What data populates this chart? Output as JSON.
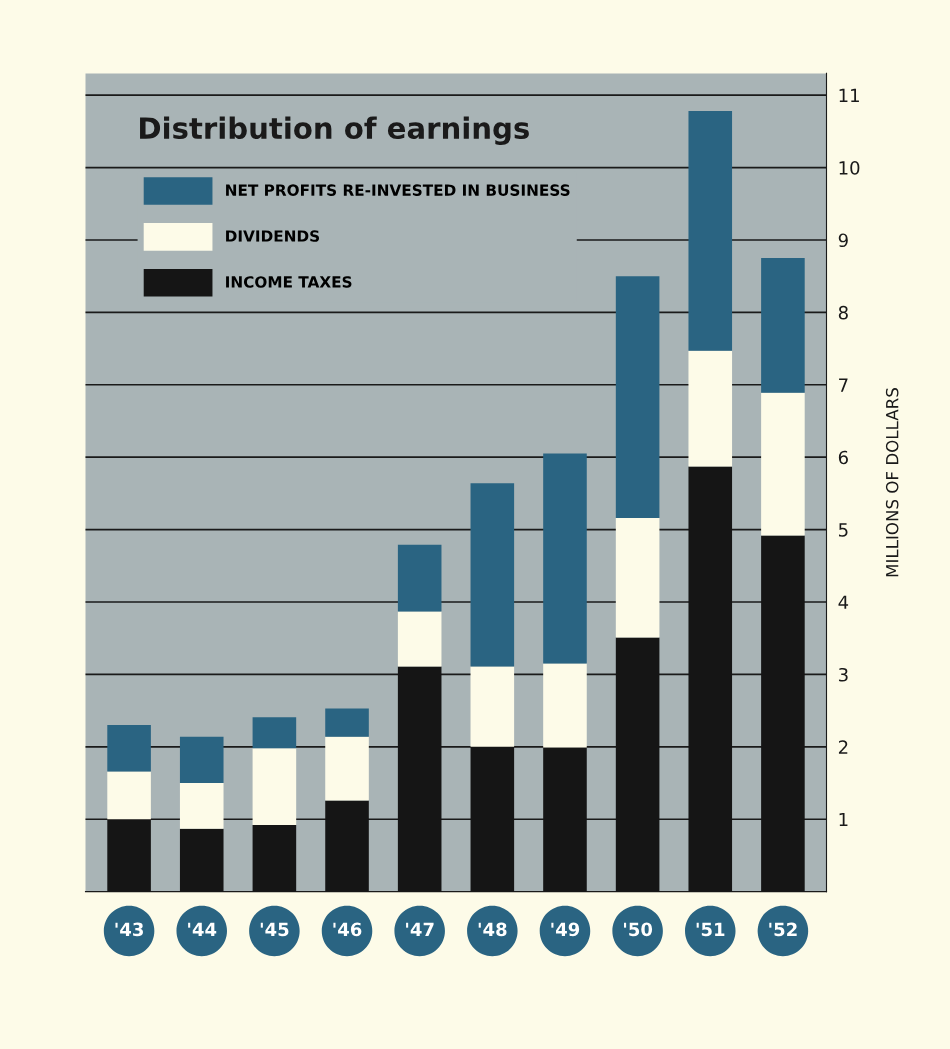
{
  "chart_data": {
    "type": "bar",
    "stacked": true,
    "title": "Distribution of earnings",
    "categories": [
      "'43",
      "'44",
      "'45",
      "'46",
      "'47",
      "'48",
      "'49",
      "'50",
      "'51",
      "'52"
    ],
    "series": [
      {
        "name": "INCOME TAXES",
        "color": "#151515",
        "values": [
          1.0,
          0.87,
          0.92,
          1.26,
          3.11,
          2.0,
          1.99,
          3.51,
          5.87,
          4.92
        ]
      },
      {
        "name": "DIVIDENDS",
        "color": "#fdfbe8",
        "values": [
          0.66,
          0.63,
          1.06,
          0.88,
          0.76,
          1.11,
          1.16,
          1.65,
          1.6,
          1.97
        ]
      },
      {
        "name": "NET PROFITS RE-INVESTED IN BUSINESS",
        "color": "#2a6482",
        "values": [
          0.64,
          0.64,
          0.43,
          0.39,
          0.92,
          2.53,
          2.9,
          3.34,
          3.31,
          1.86
        ]
      }
    ],
    "ylabel": "MILLIONS OF DOLLARS",
    "ylim": [
      0,
      11.3
    ],
    "yticks": [
      1,
      2,
      3,
      4,
      5,
      6,
      7,
      8,
      9,
      10,
      11
    ],
    "grid": "y",
    "legend": "top left"
  }
}
